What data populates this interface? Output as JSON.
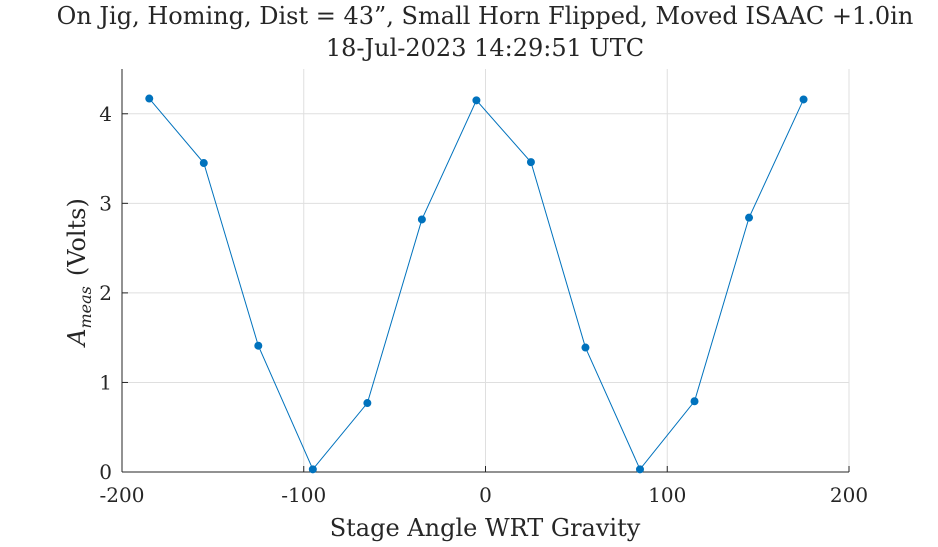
{
  "chart_data": {
    "type": "line",
    "title": "On Jig, Homing, Dist = 43”, Small Horn Flipped, Moved ISAAC +1.0in",
    "subtitle": "18-Jul-2023 14:29:51 UTC",
    "xlabel": "Stage Angle WRT Gravity",
    "ylabel_main": "A",
    "ylabel_sub": "meas",
    "ylabel_unit": "(Volts)",
    "xlim": [
      -200,
      200
    ],
    "ylim": [
      0,
      4.5
    ],
    "xticks": [
      -200,
      -100,
      0,
      100,
      200
    ],
    "xtick_labels": [
      "-200",
      "-100",
      "0",
      "100",
      "200"
    ],
    "yticks": [
      0,
      1,
      2,
      3,
      4
    ],
    "ytick_labels": [
      "0",
      "1",
      "2",
      "3",
      "4"
    ],
    "grid": true,
    "series": [
      {
        "color": "#0072bd",
        "x": [
          -185,
          -155,
          -125,
          -95,
          -65,
          -35,
          -5,
          25,
          55,
          85,
          115,
          145,
          175
        ],
        "y": [
          4.17,
          3.45,
          1.41,
          0.03,
          0.77,
          2.82,
          4.15,
          3.46,
          1.39,
          0.03,
          0.79,
          2.84,
          4.16
        ]
      }
    ]
  }
}
